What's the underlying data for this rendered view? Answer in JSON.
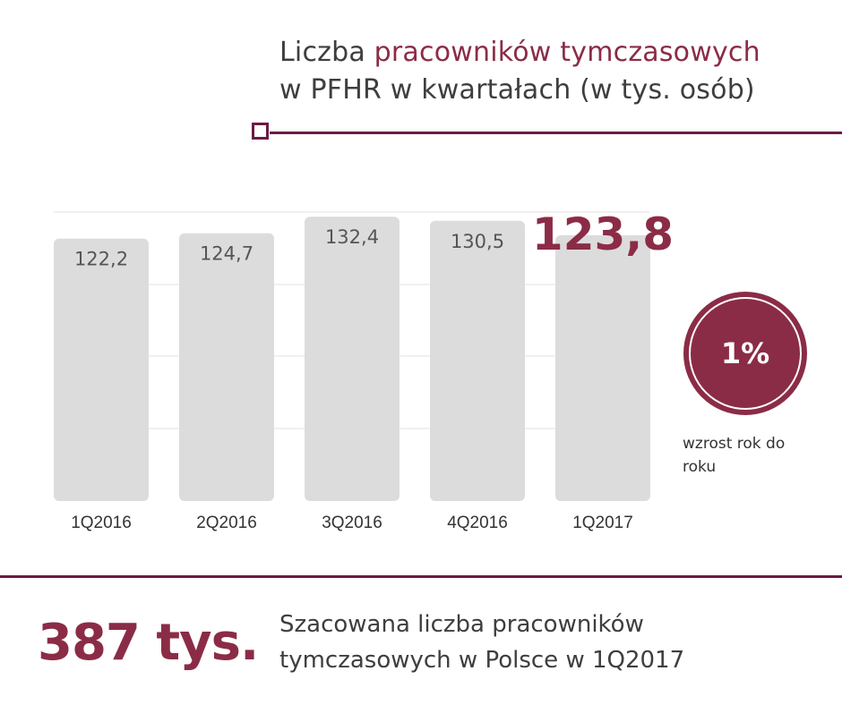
{
  "header": {
    "title_part1": "Liczba ",
    "title_highlight": "pracowników tymczasowych",
    "title_part2": "w PFHR w kwartałach (w tys. osób)"
  },
  "chart_data": {
    "type": "bar",
    "categories": [
      "1Q2016",
      "2Q2016",
      "3Q2016",
      "4Q2016",
      "1Q2017"
    ],
    "values": [
      122.2,
      124.7,
      132.4,
      130.5,
      123.8
    ],
    "value_labels": [
      "122,2",
      "124,7",
      "132,4",
      "130,5",
      "123,8"
    ],
    "highlight_index": 4,
    "grid": true,
    "colors": {
      "bar": "#dcdcdc",
      "highlight_text": "#8b2c47",
      "label": "#555555"
    }
  },
  "growth": {
    "value": "1%",
    "label": "wzrost rok do roku"
  },
  "footer": {
    "stat": "387 tys.",
    "description": "Szacowana liczba pracowników tymczasowych w Polsce w 1Q2017"
  },
  "colors": {
    "accent": "#8b2c47",
    "rule": "#6b1a44",
    "text": "#3e3e3e"
  }
}
